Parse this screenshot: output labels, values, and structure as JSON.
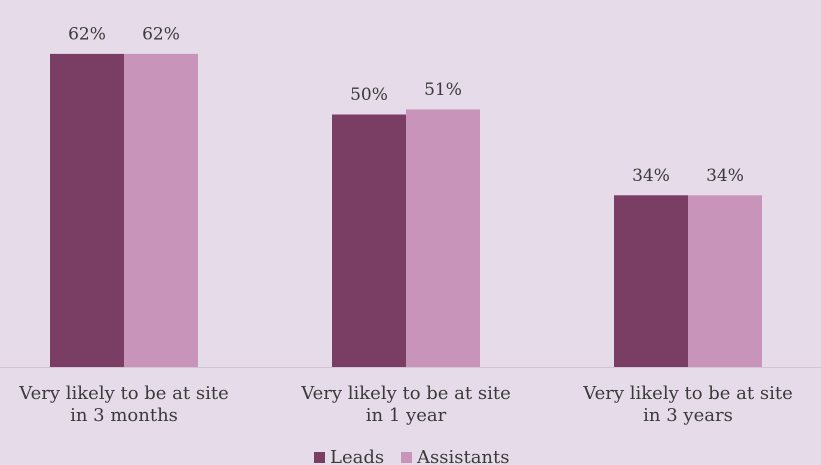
{
  "chart_data": {
    "type": "bar",
    "categories": [
      "Very likely to be at site in 3 months",
      "Very likely to be at site in 1 year",
      "Very likely to be at site in 3 years"
    ],
    "series": [
      {
        "name": "Leads",
        "color": "#7a3d64",
        "values": [
          62,
          50,
          34
        ],
        "value_labels": [
          "62%",
          "50%",
          "34%"
        ]
      },
      {
        "name": "Assistants",
        "color": "#c994b9",
        "values": [
          62,
          51,
          34
        ],
        "value_labels": [
          "62%",
          "51%",
          "34%"
        ]
      }
    ],
    "ylim": [
      0,
      70
    ],
    "legend": "bottom"
  }
}
